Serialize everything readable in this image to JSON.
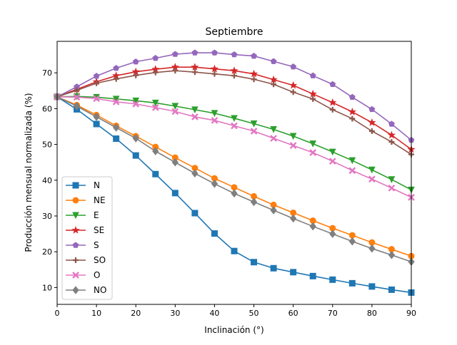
{
  "chart_data": {
    "type": "line",
    "title": "Septiembre",
    "xlabel": "Inclinación (°)",
    "ylabel": "Producción mensual normalizada (%)",
    "xlim": [
      0,
      90
    ],
    "ylim": [
      5.3,
      78.8
    ],
    "xticks": [
      "0",
      "10",
      "20",
      "30",
      "40",
      "50",
      "60",
      "70",
      "80",
      "90"
    ],
    "yticks": [
      "10",
      "20",
      "30",
      "40",
      "50",
      "60",
      "70"
    ],
    "grid": false,
    "legend_position": "lower-left",
    "x": [
      0,
      5,
      10,
      15,
      20,
      25,
      30,
      35,
      40,
      45,
      50,
      55,
      60,
      65,
      70,
      75,
      80,
      85,
      90
    ],
    "series": [
      {
        "name": "N",
        "color": "#1f77b4",
        "marker": "square",
        "values": [
          63.3,
          59.8,
          55.7,
          51.6,
          46.9,
          41.7,
          36.4,
          30.8,
          25.1,
          20.2,
          17.1,
          15.4,
          14.3,
          13.2,
          12.2,
          11.2,
          10.3,
          9.4,
          8.6
        ]
      },
      {
        "name": "NE",
        "color": "#ff7f0e",
        "marker": "circle",
        "values": [
          63.3,
          61.0,
          58.2,
          55.2,
          52.3,
          49.3,
          46.3,
          43.4,
          40.5,
          38.0,
          35.5,
          33.1,
          30.9,
          28.7,
          26.6,
          24.6,
          22.6,
          20.7,
          18.8
        ]
      },
      {
        "name": "E",
        "color": "#2ca02c",
        "marker": "triangle-down",
        "values": [
          63.3,
          63.4,
          63.2,
          62.7,
          62.2,
          61.6,
          60.7,
          59.7,
          58.7,
          57.3,
          55.8,
          54.2,
          52.3,
          50.2,
          47.9,
          45.5,
          42.9,
          40.2,
          37.3
        ]
      },
      {
        "name": "SE",
        "color": "#d62728",
        "marker": "star",
        "values": [
          63.3,
          65.4,
          67.5,
          69.2,
          70.3,
          71.0,
          71.6,
          71.6,
          71.1,
          70.6,
          69.7,
          68.1,
          66.5,
          64.1,
          61.7,
          59.1,
          56.1,
          52.6,
          48.6
        ]
      },
      {
        "name": "S",
        "color": "#9467bd",
        "marker": "pentagon",
        "values": [
          63.3,
          66.1,
          69.1,
          71.3,
          73.1,
          74.1,
          75.2,
          75.6,
          75.6,
          75.1,
          74.7,
          73.2,
          71.7,
          69.2,
          66.8,
          63.2,
          59.8,
          55.7,
          51.2
        ]
      },
      {
        "name": "SO",
        "color": "#8c564b",
        "marker": "plus",
        "values": [
          63.3,
          65.1,
          67.1,
          68.3,
          69.3,
          70.1,
          70.6,
          70.2,
          69.7,
          69.2,
          68.2,
          66.8,
          64.6,
          62.7,
          59.7,
          57.2,
          53.7,
          50.7,
          47.2
        ]
      },
      {
        "name": "O",
        "color": "#e377c2",
        "marker": "x",
        "values": [
          63.3,
          63.2,
          62.8,
          61.9,
          61.3,
          60.3,
          59.2,
          57.7,
          56.7,
          55.2,
          53.7,
          51.7,
          49.7,
          47.7,
          45.3,
          42.7,
          40.3,
          37.8,
          35.2
        ]
      },
      {
        "name": "NO",
        "color": "#7f7f7f",
        "marker": "diamond",
        "values": [
          63.3,
          60.7,
          57.7,
          54.7,
          51.7,
          48.1,
          45.0,
          41.9,
          39.0,
          36.3,
          33.9,
          31.6,
          29.3,
          27.1,
          25.0,
          22.9,
          20.9,
          19.1,
          17.2
        ]
      }
    ]
  }
}
